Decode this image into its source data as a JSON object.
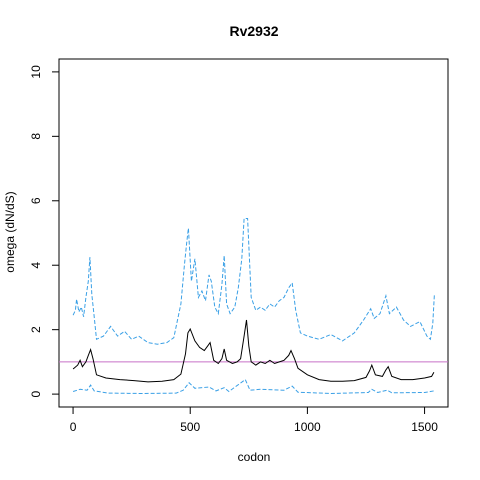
{
  "chart_data": {
    "type": "line",
    "title": "Rv2932",
    "xlabel": "codon",
    "ylabel": "omega (dN/dS)",
    "xlim": [
      -60,
      1600
    ],
    "ylim": [
      -0.4,
      10.4
    ],
    "x_ticks": [
      0,
      500,
      1000,
      1500
    ],
    "y_ticks": [
      0,
      2,
      4,
      6,
      8,
      10
    ],
    "x_tick_labels": [
      "0",
      "500",
      "1000",
      "1500"
    ],
    "y_tick_labels": [
      "0",
      "2",
      "4",
      "6",
      "8",
      "10"
    ],
    "grid": false,
    "reference_line": {
      "y": 1,
      "color": "#c872c8"
    },
    "series": [
      {
        "style": "solid",
        "color": "#000000",
        "points": [
          [
            0,
            0.78
          ],
          [
            20,
            0.9
          ],
          [
            30,
            1.05
          ],
          [
            40,
            0.85
          ],
          [
            55,
            1.0
          ],
          [
            65,
            1.2
          ],
          [
            75,
            1.38
          ],
          [
            85,
            1.1
          ],
          [
            100,
            0.6
          ],
          [
            140,
            0.5
          ],
          [
            200,
            0.45
          ],
          [
            260,
            0.42
          ],
          [
            320,
            0.38
          ],
          [
            380,
            0.4
          ],
          [
            430,
            0.45
          ],
          [
            460,
            0.62
          ],
          [
            480,
            1.25
          ],
          [
            490,
            1.9
          ],
          [
            500,
            2.02
          ],
          [
            520,
            1.65
          ],
          [
            540,
            1.45
          ],
          [
            560,
            1.35
          ],
          [
            575,
            1.5
          ],
          [
            585,
            1.6
          ],
          [
            600,
            1.05
          ],
          [
            620,
            0.95
          ],
          [
            635,
            1.1
          ],
          [
            645,
            1.4
          ],
          [
            655,
            1.05
          ],
          [
            680,
            0.95
          ],
          [
            700,
            1.0
          ],
          [
            715,
            1.1
          ],
          [
            730,
            1.8
          ],
          [
            740,
            2.3
          ],
          [
            750,
            1.5
          ],
          [
            760,
            1.0
          ],
          [
            780,
            0.9
          ],
          [
            800,
            1.0
          ],
          [
            820,
            0.95
          ],
          [
            840,
            1.05
          ],
          [
            860,
            0.95
          ],
          [
            880,
            1.0
          ],
          [
            900,
            1.05
          ],
          [
            920,
            1.2
          ],
          [
            930,
            1.35
          ],
          [
            945,
            1.1
          ],
          [
            960,
            0.8
          ],
          [
            1000,
            0.6
          ],
          [
            1050,
            0.45
          ],
          [
            1100,
            0.4
          ],
          [
            1150,
            0.4
          ],
          [
            1200,
            0.42
          ],
          [
            1250,
            0.52
          ],
          [
            1265,
            0.72
          ],
          [
            1275,
            0.9
          ],
          [
            1290,
            0.6
          ],
          [
            1320,
            0.55
          ],
          [
            1335,
            0.75
          ],
          [
            1345,
            0.85
          ],
          [
            1360,
            0.55
          ],
          [
            1400,
            0.45
          ],
          [
            1450,
            0.45
          ],
          [
            1500,
            0.5
          ],
          [
            1530,
            0.55
          ],
          [
            1540,
            0.68
          ]
        ]
      },
      {
        "style": "dashed",
        "color": "#3aa0e6",
        "points": [
          [
            0,
            2.45
          ],
          [
            10,
            2.6
          ],
          [
            15,
            2.95
          ],
          [
            25,
            2.55
          ],
          [
            35,
            2.7
          ],
          [
            45,
            2.4
          ],
          [
            55,
            3.0
          ],
          [
            65,
            3.5
          ],
          [
            72,
            4.25
          ],
          [
            80,
            3.1
          ],
          [
            90,
            2.4
          ],
          [
            100,
            1.7
          ],
          [
            130,
            1.8
          ],
          [
            160,
            2.1
          ],
          [
            190,
            1.8
          ],
          [
            220,
            1.95
          ],
          [
            250,
            1.7
          ],
          [
            280,
            1.8
          ],
          [
            320,
            1.6
          ],
          [
            360,
            1.55
          ],
          [
            400,
            1.6
          ],
          [
            430,
            1.75
          ],
          [
            460,
            2.8
          ],
          [
            475,
            4.0
          ],
          [
            485,
            4.7
          ],
          [
            492,
            5.15
          ],
          [
            505,
            3.5
          ],
          [
            520,
            4.2
          ],
          [
            535,
            3.0
          ],
          [
            550,
            3.2
          ],
          [
            565,
            2.9
          ],
          [
            580,
            3.7
          ],
          [
            590,
            3.5
          ],
          [
            605,
            2.7
          ],
          [
            620,
            2.5
          ],
          [
            635,
            3.4
          ],
          [
            645,
            4.3
          ],
          [
            655,
            2.8
          ],
          [
            670,
            2.5
          ],
          [
            690,
            2.7
          ],
          [
            705,
            3.3
          ],
          [
            720,
            4.2
          ],
          [
            730,
            5.45
          ],
          [
            745,
            5.45
          ],
          [
            760,
            3.0
          ],
          [
            780,
            2.6
          ],
          [
            800,
            2.7
          ],
          [
            820,
            2.6
          ],
          [
            840,
            2.8
          ],
          [
            860,
            2.7
          ],
          [
            880,
            2.9
          ],
          [
            900,
            3.0
          ],
          [
            920,
            3.3
          ],
          [
            935,
            3.45
          ],
          [
            950,
            2.6
          ],
          [
            970,
            1.9
          ],
          [
            1000,
            1.8
          ],
          [
            1050,
            1.7
          ],
          [
            1100,
            1.85
          ],
          [
            1150,
            1.65
          ],
          [
            1200,
            1.9
          ],
          [
            1240,
            2.3
          ],
          [
            1270,
            2.65
          ],
          [
            1285,
            2.35
          ],
          [
            1310,
            2.5
          ],
          [
            1335,
            3.05
          ],
          [
            1350,
            2.5
          ],
          [
            1380,
            2.7
          ],
          [
            1410,
            2.3
          ],
          [
            1440,
            2.1
          ],
          [
            1480,
            2.25
          ],
          [
            1510,
            1.8
          ],
          [
            1525,
            1.7
          ],
          [
            1535,
            2.2
          ],
          [
            1542,
            3.1
          ]
        ]
      },
      {
        "style": "dashed",
        "color": "#3aa0e6",
        "points": [
          [
            0,
            0.08
          ],
          [
            30,
            0.15
          ],
          [
            60,
            0.12
          ],
          [
            75,
            0.28
          ],
          [
            90,
            0.1
          ],
          [
            150,
            0.03
          ],
          [
            300,
            0.02
          ],
          [
            440,
            0.03
          ],
          [
            470,
            0.12
          ],
          [
            495,
            0.35
          ],
          [
            520,
            0.18
          ],
          [
            580,
            0.22
          ],
          [
            610,
            0.1
          ],
          [
            645,
            0.2
          ],
          [
            665,
            0.08
          ],
          [
            735,
            0.45
          ],
          [
            755,
            0.12
          ],
          [
            800,
            0.15
          ],
          [
            900,
            0.12
          ],
          [
            935,
            0.25
          ],
          [
            960,
            0.06
          ],
          [
            1100,
            0.02
          ],
          [
            1260,
            0.05
          ],
          [
            1275,
            0.15
          ],
          [
            1300,
            0.05
          ],
          [
            1340,
            0.12
          ],
          [
            1360,
            0.04
          ],
          [
            1500,
            0.05
          ],
          [
            1540,
            0.1
          ]
        ]
      }
    ]
  }
}
